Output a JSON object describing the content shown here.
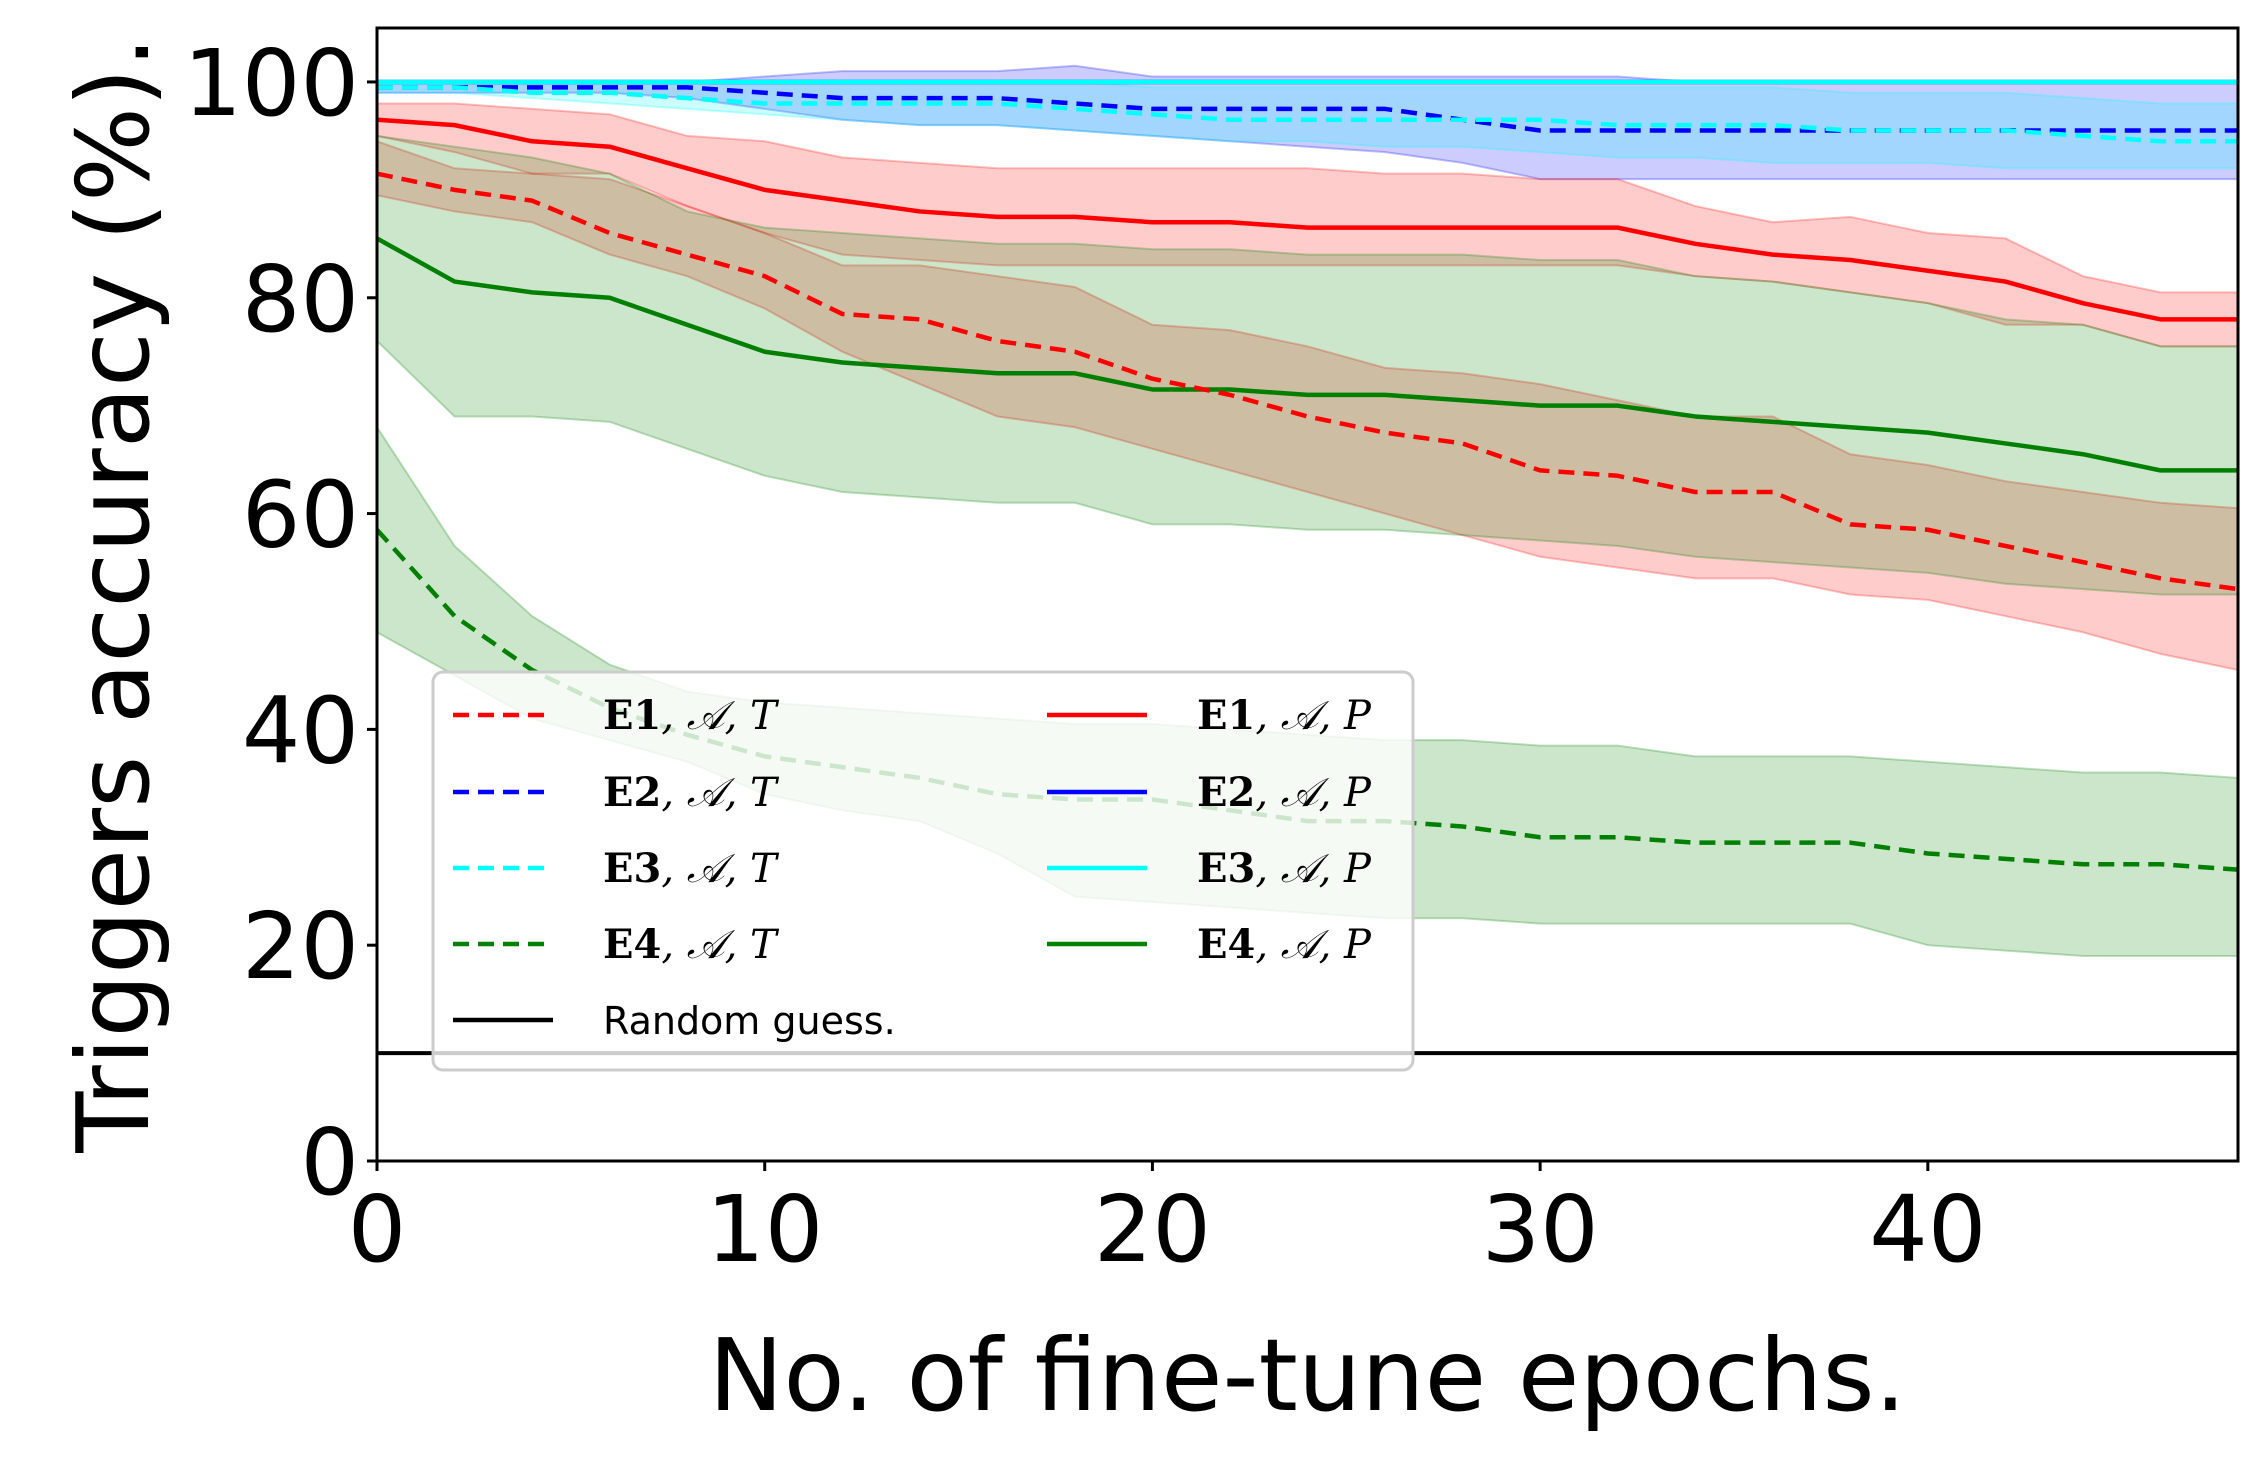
{
  "chart_data": {
    "type": "line",
    "title": "",
    "xlabel": "No. of fine-tune epochs.",
    "ylabel": "Triggers accuracy (%).",
    "xlim": [
      0,
      48
    ],
    "ylim": [
      0,
      105
    ],
    "xticks": [
      0,
      10,
      20,
      30,
      40
    ],
    "yticks": [
      0,
      20,
      40,
      60,
      80,
      100
    ],
    "legend_position": "lower-left",
    "x": [
      0,
      2,
      4,
      6,
      8,
      10,
      12,
      14,
      16,
      18,
      20,
      22,
      24,
      26,
      28,
      30,
      32,
      34,
      36,
      38,
      40,
      42,
      44,
      46,
      48
    ],
    "series": [
      {
        "name": "E1, A, T",
        "label_bold": "E1",
        "label_rest": ", 𝒜, T",
        "color": "#ff0000",
        "style": "dashed",
        "values": [
          91.5,
          90,
          89,
          86,
          84,
          82,
          78.5,
          78,
          76,
          75,
          72.5,
          71,
          69,
          67.5,
          66.5,
          64,
          63.5,
          62,
          62,
          59,
          58.5,
          57,
          55.5,
          54,
          53
        ],
        "lower": [
          89.5,
          88,
          87,
          84,
          82,
          79,
          75,
          72,
          69,
          68,
          66,
          64,
          62,
          60,
          58,
          56,
          55,
          54,
          54,
          52.5,
          52,
          50.5,
          49,
          47,
          45.5
        ],
        "upper": [
          94.5,
          92,
          91.5,
          91,
          88.5,
          86,
          83,
          83,
          82,
          81,
          77.5,
          77,
          75.5,
          73.5,
          73,
          72,
          70.5,
          69,
          69,
          65.5,
          64.5,
          63,
          62,
          61,
          60.5
        ]
      },
      {
        "name": "E2, A, T",
        "label_bold": "E2",
        "label_rest": ", 𝒜, T",
        "color": "#0000ff",
        "style": "dashed",
        "values": [
          99.5,
          99.5,
          99.5,
          99.5,
          99.5,
          99,
          98.5,
          98.5,
          98.5,
          98,
          97.5,
          97.5,
          97.5,
          97.5,
          96.5,
          95.5,
          95.5,
          95.5,
          95.5,
          95.5,
          95.5,
          95.5,
          95.5,
          95.5,
          95.5
        ],
        "lower": [
          99,
          99,
          99,
          99,
          98.5,
          97.5,
          96.5,
          96,
          96,
          95.5,
          95,
          94.5,
          94,
          93.5,
          92.5,
          91,
          91,
          91,
          91,
          91,
          91,
          91,
          91,
          91,
          91
        ],
        "upper": [
          100,
          100,
          100,
          100,
          100,
          100.5,
          101,
          101,
          101,
          101.5,
          100.5,
          100.5,
          100.5,
          100.5,
          100.5,
          100.5,
          100.5,
          100,
          100,
          100,
          100,
          100,
          100,
          100,
          100
        ]
      },
      {
        "name": "E3, A, T",
        "label_bold": "E3",
        "label_rest": ", 𝒜, T",
        "color": "#00ffff",
        "style": "dashed",
        "values": [
          99.5,
          99.5,
          99,
          99,
          98.5,
          98,
          98,
          98,
          98,
          97.5,
          97,
          96.5,
          96.5,
          96.5,
          96.5,
          96.5,
          96,
          96,
          96,
          95.5,
          95.5,
          95.5,
          95,
          94.5,
          94.5
        ],
        "lower": [
          99,
          99,
          98.5,
          98,
          97.5,
          97,
          96.5,
          96,
          96,
          95.5,
          95,
          94.5,
          94.5,
          94,
          94,
          93.5,
          93,
          93,
          92.5,
          92.5,
          92.5,
          92,
          92,
          92,
          92
        ],
        "upper": [
          100,
          100,
          100,
          100,
          100,
          100,
          100,
          100,
          100,
          100,
          99.5,
          99.5,
          99.5,
          99.5,
          99.5,
          99.5,
          99.5,
          99.5,
          99.5,
          99,
          99,
          99,
          98.5,
          98,
          98
        ]
      },
      {
        "name": "E4, A, T",
        "label_bold": "E4",
        "label_rest": ", 𝒜, T",
        "color": "#008000",
        "style": "dashed",
        "values": [
          58.5,
          50.5,
          45.5,
          42,
          39.5,
          37.5,
          36.5,
          35.5,
          34,
          33.5,
          33.5,
          32.5,
          31.5,
          31.5,
          31,
          30,
          30,
          29.5,
          29.5,
          29.5,
          28.5,
          28,
          27.5,
          27.5,
          27
        ],
        "lower": [
          49,
          45,
          41,
          39,
          37,
          34,
          32.5,
          31.5,
          28.5,
          24.5,
          24,
          23.5,
          23,
          22.5,
          22.5,
          22,
          22,
          22,
          22,
          22,
          20,
          19.5,
          19,
          19,
          19
        ],
        "upper": [
          68,
          57,
          50.5,
          46,
          43.5,
          42.5,
          42,
          41.5,
          41,
          40.5,
          40.5,
          40,
          39.5,
          39,
          39,
          38.5,
          38.5,
          37.5,
          37.5,
          37.5,
          37,
          36.5,
          36,
          36,
          35.5
        ]
      },
      {
        "name": "E1, A, P",
        "label_bold": "E1",
        "label_rest": ", 𝒜, P",
        "color": "#ff0000",
        "style": "solid",
        "values": [
          96.5,
          96,
          94.5,
          94,
          92,
          90,
          89,
          88,
          87.5,
          87.5,
          87,
          87,
          86.5,
          86.5,
          86.5,
          86.5,
          86.5,
          85,
          84,
          83.5,
          82.5,
          81.5,
          79.5,
          78,
          78
        ],
        "lower": [
          95,
          93.5,
          91.5,
          91.5,
          88.5,
          86,
          84,
          83.5,
          83,
          83,
          83,
          83,
          83,
          83,
          83,
          83,
          83,
          82,
          81.5,
          80.5,
          79.5,
          77.5,
          77.5,
          75.5,
          75.5
        ],
        "upper": [
          98,
          98,
          97.5,
          97,
          95,
          94.5,
          93,
          92.5,
          92,
          92,
          92,
          92,
          92,
          91.5,
          91.5,
          91,
          91,
          88.5,
          87,
          87.5,
          86,
          85.5,
          82,
          80.5,
          80.5
        ]
      },
      {
        "name": "E2, A, P",
        "label_bold": "E2",
        "label_rest": ", 𝒜, P",
        "color": "#0000ff",
        "style": "solid",
        "values": [
          100,
          100,
          100,
          100,
          100,
          100,
          100,
          100,
          100,
          100,
          100,
          100,
          100,
          100,
          100,
          100,
          100,
          100,
          100,
          100,
          100,
          100,
          100,
          100,
          100
        ]
      },
      {
        "name": "E3, A, P",
        "label_bold": "E3",
        "label_rest": ", 𝒜, P",
        "color": "#00ffff",
        "style": "solid",
        "values": [
          100,
          100,
          100,
          100,
          100,
          100,
          100,
          100,
          100,
          100,
          100,
          100,
          100,
          100,
          100,
          100,
          100,
          100,
          100,
          100,
          100,
          100,
          100,
          100,
          100
        ]
      },
      {
        "name": "E4, A, P",
        "label_bold": "E4",
        "label_rest": ", 𝒜, P",
        "color": "#008000",
        "style": "solid",
        "values": [
          85.5,
          81.5,
          80.5,
          80,
          77.5,
          75,
          74,
          73.5,
          73,
          73,
          71.5,
          71.5,
          71,
          71,
          70.5,
          70,
          70,
          69,
          68.5,
          68,
          67.5,
          66.5,
          65.5,
          64,
          64
        ],
        "lower": [
          76,
          69,
          69,
          68.5,
          66,
          63.5,
          62,
          61.5,
          61,
          61,
          59,
          59,
          58.5,
          58.5,
          58,
          57.5,
          57,
          56,
          55.5,
          55,
          54.5,
          53.5,
          53,
          52.5,
          52.5
        ],
        "upper": [
          95,
          94,
          93,
          91.5,
          88,
          86.5,
          86,
          85.5,
          85,
          85,
          84.5,
          84.5,
          84,
          84,
          84,
          83.5,
          83.5,
          82,
          81.5,
          80.5,
          79.5,
          78,
          77.5,
          75.5,
          75.5
        ]
      }
    ],
    "reference_line": {
      "name": "Random guess.",
      "y": 10,
      "color": "#000000"
    }
  }
}
